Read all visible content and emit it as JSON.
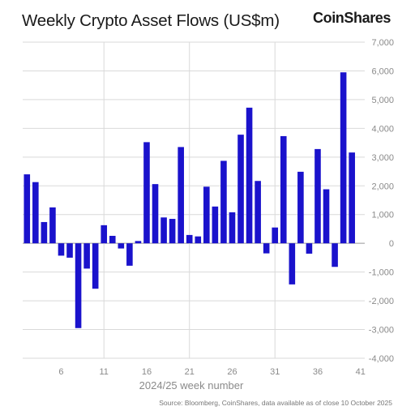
{
  "header": {
    "title": "Weekly Crypto Asset Flows (US$m)",
    "brand": "CoinShares"
  },
  "footer": {
    "source": "Source: Bloomberg, CoinShares, data available as of close 10 October 2025"
  },
  "colors": {
    "bar": "#1a12cc",
    "grid": "#d9d9d9",
    "zero_line": "#999999",
    "tick_text": "#8a8a8a"
  },
  "chart_data": {
    "type": "bar",
    "xlabel": "2024/25 week number",
    "ylabel": "",
    "ylim": [
      -4000,
      7000
    ],
    "yticks": [
      7000,
      6000,
      5000,
      4000,
      3000,
      2000,
      1000,
      0,
      -1000,
      -2000,
      -3000,
      -4000
    ],
    "ytick_labels": [
      "7,000",
      "6,000",
      "5,000",
      "4,000",
      "3,000",
      "2,000",
      "1,000",
      "0",
      "-1,000",
      "-2,000",
      "-3,000",
      "-4,000"
    ],
    "xticks": [
      6,
      11,
      16,
      21,
      26,
      31,
      36,
      41
    ],
    "x_gridlines": [
      11,
      21,
      31
    ],
    "x": [
      2,
      3,
      4,
      5,
      6,
      7,
      8,
      9,
      10,
      11,
      12,
      13,
      14,
      15,
      16,
      17,
      18,
      19,
      20,
      21,
      22,
      23,
      24,
      25,
      26,
      27,
      28,
      29,
      30,
      31,
      32,
      33,
      34,
      35,
      36,
      37,
      38,
      39,
      40,
      41
    ],
    "values": [
      2400,
      2130,
      740,
      1250,
      -430,
      -500,
      -2950,
      -880,
      -1580,
      630,
      260,
      -180,
      -780,
      80,
      3520,
      2060,
      900,
      850,
      3350,
      290,
      240,
      1970,
      1280,
      2870,
      1080,
      3780,
      4720,
      2170,
      -350,
      550,
      3730,
      -1430,
      2490,
      -360,
      3280,
      1880,
      -820,
      5950,
      3160,
      0
    ]
  }
}
